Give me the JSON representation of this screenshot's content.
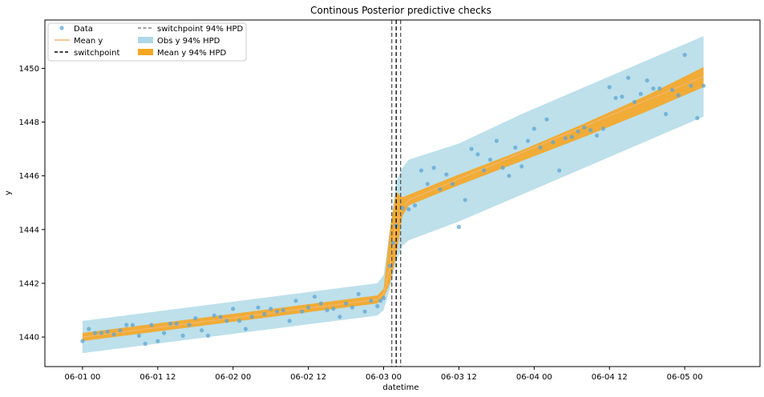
{
  "chart_data": {
    "type": "scatter",
    "title": "Continous Posterior predictive checks",
    "xlabel": "datetime",
    "ylabel": "y",
    "x_unit": "hours since 06-01 00",
    "xlim": [
      -6,
      108
    ],
    "ylim": [
      1438.9,
      1451.8
    ],
    "x_ticks": [
      {
        "value": 0,
        "label": "06-01 00"
      },
      {
        "value": 12,
        "label": "06-01 12"
      },
      {
        "value": 24,
        "label": "06-02 00"
      },
      {
        "value": 36,
        "label": "06-02 12"
      },
      {
        "value": 48,
        "label": "06-03 00"
      },
      {
        "value": 60,
        "label": "06-03 12"
      },
      {
        "value": 72,
        "label": "06-04 00"
      },
      {
        "value": 84,
        "label": "06-04 12"
      },
      {
        "value": 96,
        "label": "06-05 00"
      }
    ],
    "y_ticks": [
      1440,
      1442,
      1444,
      1446,
      1448,
      1450
    ],
    "legend": {
      "placement": "top-left",
      "columns": 2,
      "entries": [
        {
          "label": "Data",
          "kind": "marker",
          "color": "#5da5d4"
        },
        {
          "label": "Mean y",
          "kind": "line",
          "color": "#f5b66d"
        },
        {
          "label": "switchpoint",
          "kind": "dashed",
          "color": "#000000"
        },
        {
          "label": "switchpoint 94% HPD",
          "kind": "dashed",
          "color": "#808080"
        },
        {
          "label": "Obs y 94% HPD",
          "kind": "patch",
          "color": "#add8e6"
        },
        {
          "label": "Mean y 94% HPD",
          "kind": "patch",
          "color": "#f5a623"
        }
      ]
    },
    "series": [
      {
        "name": "Data",
        "color": "#5da5d4",
        "points": [
          [
            0,
            1439.85
          ],
          [
            1,
            1440.3
          ],
          [
            2,
            1440.15
          ],
          [
            3,
            1440.15
          ],
          [
            4,
            1440.2
          ],
          [
            5,
            1440.1
          ],
          [
            6,
            1440.25
          ],
          [
            7,
            1440.45
          ],
          [
            8,
            1440.45
          ],
          [
            9,
            1440.05
          ],
          [
            10,
            1439.75
          ],
          [
            11,
            1440.45
          ],
          [
            12,
            1439.85
          ],
          [
            13,
            1440.15
          ],
          [
            14,
            1440.5
          ],
          [
            15,
            1440.5
          ],
          [
            16,
            1440.05
          ],
          [
            17,
            1440.45
          ],
          [
            18,
            1440.7
          ],
          [
            19,
            1440.25
          ],
          [
            20,
            1440.05
          ],
          [
            21,
            1440.8
          ],
          [
            22,
            1440.75
          ],
          [
            23,
            1440.6
          ],
          [
            24,
            1441.05
          ],
          [
            25,
            1440.6
          ],
          [
            26,
            1440.3
          ],
          [
            27,
            1440.75
          ],
          [
            28,
            1441.1
          ],
          [
            29,
            1440.85
          ],
          [
            30,
            1441.05
          ],
          [
            31,
            1440.95
          ],
          [
            32,
            1441.0
          ],
          [
            33,
            1440.6
          ],
          [
            34,
            1441.35
          ],
          [
            35,
            1440.95
          ],
          [
            36,
            1441.1
          ],
          [
            37,
            1441.5
          ],
          [
            38,
            1441.25
          ],
          [
            39,
            1441.0
          ],
          [
            40,
            1441.05
          ],
          [
            41,
            1440.75
          ],
          [
            42,
            1441.25
          ],
          [
            43,
            1441.1
          ],
          [
            44,
            1441.6
          ],
          [
            45,
            1440.95
          ],
          [
            46,
            1441.35
          ],
          [
            47,
            1441.15
          ],
          [
            47.5,
            1441.35
          ],
          [
            48,
            1441.45
          ],
          [
            49,
            1442.65
          ],
          [
            49.5,
            1443.5
          ],
          [
            50,
            1444.15
          ],
          [
            51,
            1444.8
          ],
          [
            52,
            1444.75
          ],
          [
            53,
            1444.9
          ],
          [
            54,
            1446.2
          ],
          [
            55,
            1445.7
          ],
          [
            56,
            1446.3
          ],
          [
            57,
            1445.5
          ],
          [
            58,
            1446.05
          ],
          [
            59,
            1445.7
          ],
          [
            60,
            1444.1
          ],
          [
            61,
            1445.1
          ],
          [
            62,
            1447.0
          ],
          [
            63,
            1446.8
          ],
          [
            64,
            1446.2
          ],
          [
            65,
            1446.6
          ],
          [
            66,
            1447.3
          ],
          [
            67,
            1446.3
          ],
          [
            68,
            1446.0
          ],
          [
            69,
            1447.05
          ],
          [
            70,
            1446.35
          ],
          [
            71,
            1447.3
          ],
          [
            72,
            1447.75
          ],
          [
            73,
            1447.05
          ],
          [
            74,
            1448.1
          ],
          [
            75,
            1447.25
          ],
          [
            76,
            1446.2
          ],
          [
            77,
            1447.4
          ],
          [
            78,
            1447.45
          ],
          [
            79,
            1447.65
          ],
          [
            80,
            1447.8
          ],
          [
            81,
            1447.7
          ],
          [
            82,
            1447.5
          ],
          [
            83,
            1447.75
          ],
          [
            84,
            1449.3
          ],
          [
            85,
            1448.9
          ],
          [
            86,
            1448.95
          ],
          [
            87,
            1449.65
          ],
          [
            88,
            1448.75
          ],
          [
            89,
            1449.05
          ],
          [
            90,
            1449.55
          ],
          [
            91,
            1449.25
          ],
          [
            92,
            1449.25
          ],
          [
            93,
            1448.3
          ],
          [
            94,
            1449.2
          ],
          [
            95,
            1449.0
          ],
          [
            96,
            1450.5
          ],
          [
            97,
            1449.35
          ],
          [
            98,
            1448.15
          ],
          [
            99,
            1449.35
          ]
        ]
      },
      {
        "name": "Mean y",
        "color": "#f5b66d",
        "points": [
          [
            0,
            1440.0
          ],
          [
            47,
            1441.4
          ],
          [
            48,
            1441.6
          ],
          [
            49,
            1442.6
          ],
          [
            50,
            1444.2
          ],
          [
            51,
            1444.8
          ],
          [
            52,
            1445.1
          ],
          [
            99,
            1449.7
          ]
        ]
      }
    ],
    "bands": [
      {
        "name": "Obs y 94% HPD",
        "color": "#add8e6",
        "x": [
          0,
          47,
          48,
          49,
          50,
          51,
          52,
          60,
          70,
          80,
          90,
          99
        ],
        "lower": [
          1439.4,
          1440.8,
          1441.0,
          1441.8,
          1442.8,
          1443.4,
          1443.6,
          1444.3,
          1445.3,
          1446.3,
          1447.3,
          1448.2
        ],
        "upper": [
          1440.6,
          1442.0,
          1442.3,
          1444.0,
          1445.8,
          1446.3,
          1446.6,
          1447.2,
          1448.3,
          1449.3,
          1450.3,
          1451.2
        ]
      },
      {
        "name": "Mean y 94% HPD",
        "color": "#f5a623",
        "x": [
          0,
          47,
          48,
          49,
          50,
          51,
          52,
          60,
          70,
          80,
          90,
          99
        ],
        "lower": [
          1439.85,
          1441.25,
          1441.45,
          1442.0,
          1443.0,
          1444.5,
          1444.9,
          1445.65,
          1446.55,
          1447.45,
          1448.4,
          1449.3
        ],
        "upper": [
          1440.15,
          1441.55,
          1441.8,
          1444.0,
          1445.4,
          1445.2,
          1445.3,
          1446.05,
          1446.95,
          1447.95,
          1449.0,
          1450.05
        ]
      }
    ],
    "vlines": [
      {
        "name": "switchpoint",
        "x": 50.0,
        "color": "#000000"
      },
      {
        "name": "switchpoint 94% HPD lower",
        "x": 49.3,
        "color": "#555555"
      },
      {
        "name": "switchpoint 94% HPD upper",
        "x": 50.7,
        "color": "#555555"
      }
    ],
    "grid": false
  }
}
